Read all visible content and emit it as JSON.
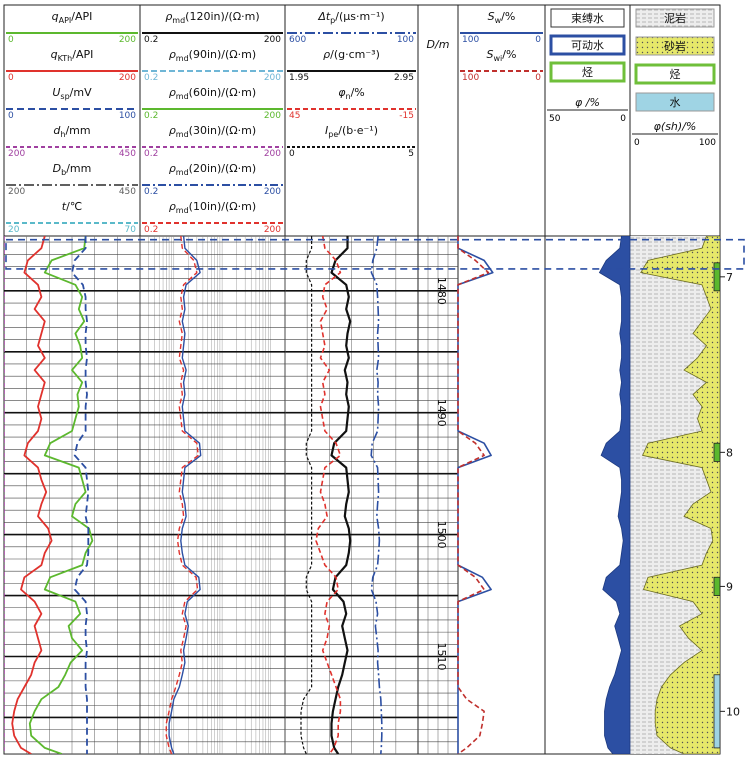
{
  "chart_data": {
    "type": "line",
    "depth_axis": {
      "label": "D/m",
      "range": [
        1475.5,
        1518.0
      ],
      "tick_labels": [
        "1480",
        "1490",
        "1500",
        "1510"
      ]
    },
    "tracks": [
      {
        "curves": [
          {
            "label": "q_API/API",
            "label_main": "q",
            "label_sub": "API",
            "label_tail": "/API",
            "min": "0",
            "max": "200",
            "color": "#5cb82e",
            "dash": ""
          },
          {
            "label": "q_KTh/API",
            "label_main": "q",
            "label_sub": "KTh",
            "label_tail": "/API",
            "min": "0",
            "max": "200",
            "color": "#e0322d",
            "dash": ""
          },
          {
            "label": "U_sp/mV",
            "label_main": "U",
            "label_sub": "sp",
            "label_tail": "/mV",
            "min": "0",
            "max": "100",
            "color": "#2c4fa3",
            "dash": "7,4"
          },
          {
            "label": "d_h/mm",
            "label_main": "d",
            "label_sub": "h",
            "label_tail": "/mm",
            "min": "200",
            "max": "450",
            "color": "#a040a0",
            "dash": "4,3"
          },
          {
            "label": "D_b/mm",
            "label_main": "D",
            "label_sub": "b",
            "label_tail": "/mm",
            "min": "200",
            "max": "450",
            "color": "#606060",
            "dash": "10,3,2,3"
          },
          {
            "label": "t/℃",
            "label_main": "t",
            "label_sub": "",
            "label_tail": "/℃",
            "min": "20",
            "max": "70",
            "color": "#5ab9c9",
            "dash": "5,3"
          }
        ]
      },
      {
        "curves": [
          {
            "label": "ρmd(120in)/(Ω·m)",
            "label_main": "ρ",
            "label_sub": "md",
            "label_tail": "(120in)/(Ω·m)",
            "min": "0.2",
            "max": "200",
            "color": "#111111",
            "dash": ""
          },
          {
            "label": "ρmd(90in)/(Ω·m)",
            "label_main": "ρ",
            "label_sub": "md",
            "label_tail": "(90in)/(Ω·m)",
            "min": "0.2",
            "max": "200",
            "color": "#6fb6d6",
            "dash": "6,3"
          },
          {
            "label": "ρmd(60in)/(Ω·m)",
            "label_main": "ρ",
            "label_sub": "md",
            "label_tail": "(60in)/(Ω·m)",
            "min": "0.2",
            "max": "200",
            "color": "#5cb82e",
            "dash": ""
          },
          {
            "label": "ρmd(30in)/(Ω·m)",
            "label_main": "ρ",
            "label_sub": "md",
            "label_tail": "(30in)/(Ω·m)",
            "min": "0.2",
            "max": "200",
            "color": "#a040a0",
            "dash": "4,3"
          },
          {
            "label": "ρmd(20in)/(Ω·m)",
            "label_main": "ρ",
            "label_sub": "md",
            "label_tail": "(20in)/(Ω·m)",
            "min": "0.2",
            "max": "200",
            "color": "#2c4fa3",
            "dash": "8,3,2,3"
          },
          {
            "label": "ρmd(10in)/(Ω·m)",
            "label_main": "ρ",
            "label_sub": "md",
            "label_tail": "(10in)/(Ω·m)",
            "min": "0.2",
            "max": "200",
            "color": "#e0322d",
            "dash": "5,3"
          }
        ]
      },
      {
        "curves": [
          {
            "label": "Δt_p/(μs·m⁻¹)",
            "label_main": "Δt",
            "label_sub": "p",
            "label_tail": "/(μs·m⁻¹)",
            "min": "600",
            "max": "100",
            "color": "#2c4fa3",
            "dash": "10,3,2,3"
          },
          {
            "label": "ρ/(g·cm⁻³)",
            "label_main": "ρ",
            "label_sub": "",
            "label_tail": "/(g·cm⁻³)",
            "min": "1.95",
            "max": "2.95",
            "color": "#111111",
            "dash": ""
          },
          {
            "label": "φ_n/%",
            "label_main": "φ",
            "label_sub": "n",
            "label_tail": "/%",
            "min": "45",
            "max": "-15",
            "color": "#e0322d",
            "dash": "5,3"
          },
          {
            "label": "I_pe/(b·e⁻¹)",
            "label_main": "I",
            "label_sub": "pe",
            "label_tail": "/(b·e⁻¹)",
            "min": "0",
            "max": "5",
            "color": "#111111",
            "dash": "3,2"
          }
        ]
      },
      {
        "curves": [
          {
            "label": "S_w/%",
            "label_main": "S",
            "label_sub": "w",
            "label_tail": "/%",
            "min": "100",
            "max": "0",
            "color": "#2c4fa3",
            "dash": ""
          },
          {
            "label": "S_wi/%",
            "label_main": "S",
            "label_sub": "wi",
            "label_tail": "/%",
            "min": "100",
            "max": "0",
            "color": "#c0302d",
            "dash": "5,3"
          }
        ]
      }
    ],
    "porosity_track": {
      "legend": [
        {
          "text": "束缚水",
          "color": "#ffffff",
          "border": "#333333"
        },
        {
          "text": "可动水",
          "color": "#ffffff",
          "border": "#2c4fa3"
        },
        {
          "text": "烃",
          "color": "#ffffff",
          "border": "#6fbf3a"
        }
      ],
      "scale_label": "φ /%",
      "min": "50",
      "max": "0"
    },
    "lithology_track": {
      "legend": [
        {
          "text": "泥岩",
          "color": "#e8e8e8"
        },
        {
          "text": "砂岩",
          "color": "#e6e86a"
        },
        {
          "text": "烃",
          "color": "#ffffff"
        },
        {
          "text": "水",
          "color": "#9fd4e4"
        }
      ],
      "scale_label": "φ(sh)/%",
      "min": "0",
      "max": "100"
    },
    "layers": [
      {
        "number": "7",
        "top": 1477.7,
        "bottom": 1480.0
      },
      {
        "number": "8",
        "top": 1492.5,
        "bottom": 1494.0
      },
      {
        "number": "9",
        "top": 1503.5,
        "bottom": 1505.0
      },
      {
        "number": "10",
        "top": 1511.5,
        "bottom": 1517.5
      }
    ],
    "highlight_interval": [
      1475.8,
      1478.2
    ],
    "curve_data": {
      "depth": [
        1475.5,
        1476.5,
        1477.5,
        1478.5,
        1479.5,
        1480.5,
        1481.5,
        1482.5,
        1483.5,
        1484.5,
        1485.5,
        1486.5,
        1487.5,
        1488.5,
        1489.5,
        1490.5,
        1491.5,
        1492.5,
        1493.5,
        1494.5,
        1495.5,
        1496.5,
        1497.5,
        1498.5,
        1499.5,
        1500.5,
        1501.5,
        1502.5,
        1503.5,
        1504.5,
        1505.5,
        1506.5,
        1507.5,
        1508.5,
        1509.5,
        1510.5,
        1511.5,
        1512.5,
        1513.5,
        1514.5,
        1515.5,
        1516.5,
        1517.5,
        1518.0
      ],
      "gr": [
        120,
        118,
        70,
        60,
        105,
        115,
        110,
        118,
        105,
        112,
        115,
        100,
        115,
        108,
        110,
        105,
        100,
        68,
        60,
        110,
        115,
        120,
        105,
        100,
        125,
        130,
        120,
        115,
        68,
        60,
        105,
        112,
        95,
        100,
        115,
        98,
        90,
        80,
        55,
        45,
        38,
        40,
        60,
        85
      ],
      "kth": [
        60,
        55,
        35,
        30,
        50,
        55,
        45,
        60,
        55,
        50,
        60,
        45,
        60,
        55,
        50,
        55,
        50,
        35,
        30,
        50,
        55,
        62,
        55,
        50,
        65,
        70,
        60,
        55,
        30,
        25,
        45,
        55,
        45,
        50,
        55,
        45,
        40,
        30,
        20,
        15,
        12,
        15,
        25,
        40
      ],
      "sp": [
        60,
        60,
        52,
        50,
        58,
        60,
        60,
        61,
        60,
        60,
        61,
        60,
        60,
        61,
        60,
        60,
        60,
        54,
        52,
        60,
        61,
        62,
        61,
        60,
        62,
        62,
        62,
        61,
        54,
        52,
        60,
        61,
        60,
        60,
        61,
        60,
        60,
        60,
        61,
        61,
        61,
        61,
        61,
        61
      ],
      "dh": [
        200,
        200,
        200,
        200,
        200,
        200,
        200,
        200,
        200,
        200,
        200,
        200,
        200,
        200,
        200,
        200,
        200,
        200,
        200,
        200,
        200,
        200,
        200,
        200,
        200,
        200,
        200,
        200,
        200,
        200,
        200,
        200,
        200,
        200,
        200,
        200,
        200,
        200,
        200,
        200,
        200,
        200,
        200,
        200
      ],
      "rt": [
        1.6,
        1.7,
        3.0,
        3.5,
        1.8,
        1.6,
        1.7,
        1.5,
        1.7,
        1.6,
        1.5,
        1.8,
        1.6,
        1.7,
        1.5,
        1.6,
        1.7,
        3.4,
        3.6,
        1.7,
        1.6,
        1.5,
        1.7,
        1.8,
        1.5,
        1.4,
        1.5,
        1.7,
        3.3,
        3.5,
        1.9,
        1.7,
        2.0,
        1.8,
        1.6,
        1.7,
        1.5,
        1.3,
        1.0,
        0.9,
        0.8,
        0.8,
        0.9,
        1.0
      ],
      "rxo": [
        1.4,
        1.5,
        2.6,
        3.0,
        1.6,
        1.4,
        1.5,
        1.3,
        1.5,
        1.4,
        1.3,
        1.6,
        1.4,
        1.5,
        1.3,
        1.4,
        1.5,
        3.0,
        3.2,
        1.5,
        1.4,
        1.3,
        1.5,
        1.6,
        1.3,
        1.2,
        1.3,
        1.5,
        2.9,
        3.1,
        1.7,
        1.5,
        1.8,
        1.6,
        1.4,
        1.5,
        1.3,
        1.1,
        0.9,
        0.8,
        0.7,
        0.7,
        0.8,
        0.9
      ],
      "dt": [
        250,
        255,
        270,
        275,
        255,
        252,
        250,
        248,
        252,
        250,
        248,
        255,
        250,
        252,
        248,
        250,
        252,
        272,
        276,
        252,
        250,
        248,
        252,
        255,
        248,
        245,
        248,
        252,
        270,
        275,
        258,
        252,
        260,
        255,
        250,
        252,
        248,
        245,
        240,
        238,
        236,
        236,
        238,
        240
      ],
      "den": [
        2.42,
        2.42,
        2.33,
        2.3,
        2.41,
        2.43,
        2.41,
        2.44,
        2.42,
        2.41,
        2.43,
        2.4,
        2.42,
        2.41,
        2.43,
        2.42,
        2.41,
        2.32,
        2.3,
        2.41,
        2.42,
        2.43,
        2.41,
        2.4,
        2.43,
        2.44,
        2.43,
        2.41,
        2.33,
        2.31,
        2.39,
        2.41,
        2.38,
        2.4,
        2.42,
        2.4,
        2.38,
        2.35,
        2.33,
        2.31,
        2.3,
        2.3,
        2.32,
        2.35
      ],
      "cnl": [
        28,
        27,
        22,
        20,
        27,
        28,
        26,
        29,
        28,
        27,
        29,
        25,
        28,
        27,
        29,
        28,
        27,
        22,
        20,
        27,
        28,
        29,
        27,
        26,
        30,
        31,
        29,
        27,
        22,
        21,
        26,
        27,
        25,
        26,
        28,
        26,
        24,
        22,
        20,
        20,
        21,
        21,
        23,
        25
      ],
      "pe": [
        1.0,
        1.0,
        0.8,
        0.8,
        1.0,
        1.0,
        1.0,
        1.0,
        1.0,
        1.0,
        1.0,
        1.0,
        1.0,
        1.0,
        1.0,
        1.0,
        1.0,
        0.8,
        0.8,
        1.0,
        1.0,
        1.0,
        1.0,
        1.0,
        1.0,
        1.0,
        1.0,
        1.0,
        0.8,
        0.8,
        1.0,
        1.0,
        1.0,
        1.0,
        1.0,
        1.0,
        1.0,
        1.0,
        0.7,
        0.6,
        0.6,
        0.6,
        0.7,
        0.8
      ],
      "sw": [
        100,
        100,
        70,
        60,
        100,
        100,
        100,
        100,
        100,
        100,
        100,
        100,
        100,
        100,
        100,
        100,
        100,
        70,
        62,
        100,
        100,
        100,
        100,
        100,
        100,
        100,
        100,
        100,
        72,
        62,
        100,
        100,
        100,
        100,
        100,
        100,
        100,
        100,
        100,
        100,
        100,
        100,
        100,
        100
      ],
      "swi": [
        100,
        100,
        80,
        65,
        100,
        100,
        100,
        100,
        100,
        100,
        100,
        100,
        100,
        100,
        100,
        100,
        100,
        80,
        70,
        100,
        100,
        100,
        100,
        100,
        100,
        100,
        100,
        100,
        80,
        70,
        100,
        100,
        100,
        100,
        100,
        100,
        100,
        100,
        90,
        70,
        72,
        75,
        90,
        100
      ],
      "vsh": [
        85,
        80,
        20,
        12,
        80,
        85,
        90,
        80,
        70,
        85,
        75,
        60,
        85,
        70,
        80,
        75,
        80,
        20,
        14,
        80,
        85,
        90,
        70,
        60,
        90,
        92,
        85,
        80,
        20,
        15,
        70,
        80,
        55,
        65,
        80,
        60,
        45,
        35,
        30,
        28,
        28,
        30,
        45,
        60
      ],
      "phi": [
        5,
        6,
        14,
        18,
        6,
        5,
        5,
        5,
        6,
        5,
        5,
        6,
        5,
        6,
        5,
        5,
        6,
        14,
        17,
        6,
        5,
        5,
        6,
        7,
        5,
        4,
        5,
        6,
        14,
        16,
        8,
        6,
        9,
        7,
        5,
        7,
        9,
        12,
        14,
        15,
        15,
        15,
        13,
        10
      ]
    }
  }
}
